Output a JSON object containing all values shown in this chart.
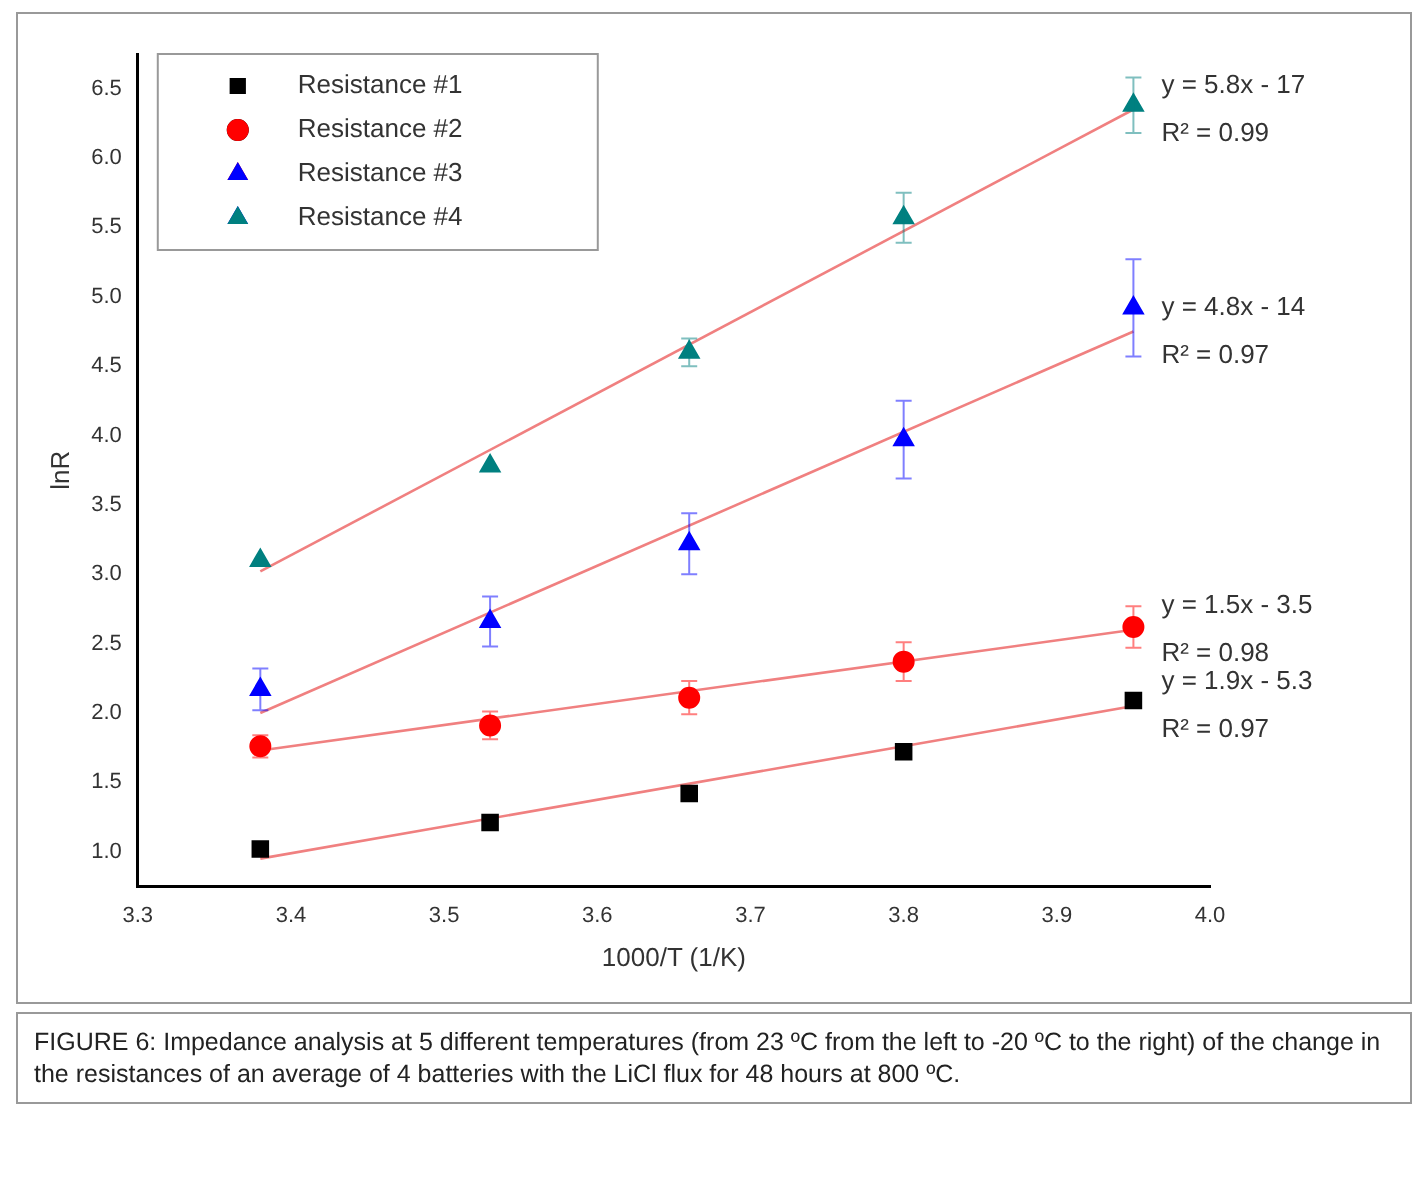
{
  "chart_data": {
    "type": "scatter",
    "xlabel": "1000/T (1/K)",
    "ylabel": "lnR",
    "xlim": [
      3.3,
      4.0
    ],
    "xticks": [
      3.3,
      3.4,
      3.5,
      3.6,
      3.7,
      3.8,
      3.9,
      {
        "value": 4.0,
        "label": "4.0"
      }
    ],
    "ylim": [
      0.75,
      6.75
    ],
    "yticks": [
      {
        "value": 1,
        "label": "1.0"
      },
      1.5,
      {
        "value": 2,
        "label": "2.0"
      },
      2.5,
      {
        "value": 3,
        "label": "3.0"
      },
      3.5,
      {
        "value": 4,
        "label": "4.0"
      },
      4.5,
      {
        "value": 5,
        "label": "5.0"
      },
      5.5,
      {
        "value": 6,
        "label": "6.0"
      },
      6.5
    ],
    "grid": false,
    "legend": "top left",
    "x": [
      3.38,
      3.53,
      3.66,
      3.8,
      3.95
    ],
    "series": [
      {
        "name": "Resistance #1",
        "color": "#000000",
        "marker": "square",
        "values": [
          1.02,
          1.21,
          1.42,
          1.72,
          2.09
        ]
      },
      {
        "name": "Resistance #2",
        "color": "#ff0000",
        "marker": "circle",
        "values": [
          1.76,
          1.91,
          2.11,
          2.37,
          2.62
        ],
        "errors": [
          0.08,
          0.1,
          0.12,
          0.14,
          0.15
        ]
      },
      {
        "name": "Resistance #3",
        "color": "#0000ff",
        "marker": "triangle",
        "values": [
          2.17,
          2.66,
          3.22,
          3.97,
          4.92
        ],
        "errors": [
          0.15,
          0.18,
          0.22,
          0.28,
          0.35
        ]
      },
      {
        "name": "Resistance #4",
        "color": "#008080",
        "marker": "triangle",
        "values": [
          3.1,
          3.78,
          4.6,
          5.57,
          6.38
        ],
        "errors": [
          null,
          null,
          0.1,
          0.18,
          0.2
        ]
      },
      {
        "type": "line",
        "color": "#f08080",
        "values": [
          0.95,
          null,
          null,
          null,
          2.05
        ]
      },
      {
        "type": "line",
        "color": "#f08080",
        "values": [
          1.73,
          null,
          null,
          null,
          2.6
        ]
      },
      {
        "type": "line",
        "color": "#f08080",
        "values": [
          2.0,
          null,
          null,
          null,
          4.75
        ]
      },
      {
        "type": "line",
        "color": "#f08080",
        "values": [
          3.02,
          null,
          null,
          null,
          6.35
        ]
      }
    ],
    "annotations": [
      "y = 5.8x - 17",
      "R² = 0.99",
      "y = 4.8x - 14",
      "R² = 0.97",
      "y = 1.5x - 3.5",
      "R² = 0.98",
      "y = 1.9x - 5.3",
      "R² = 0.97",
      "FIGURE 6: Impedance analysis at 5 different temperatures (from 23 ºC from the left to -20 ºC to the right) of the change in the resistances of an average of 4 batteries with the LiCl flux for 48 hours at 800 ºC."
    ]
  }
}
